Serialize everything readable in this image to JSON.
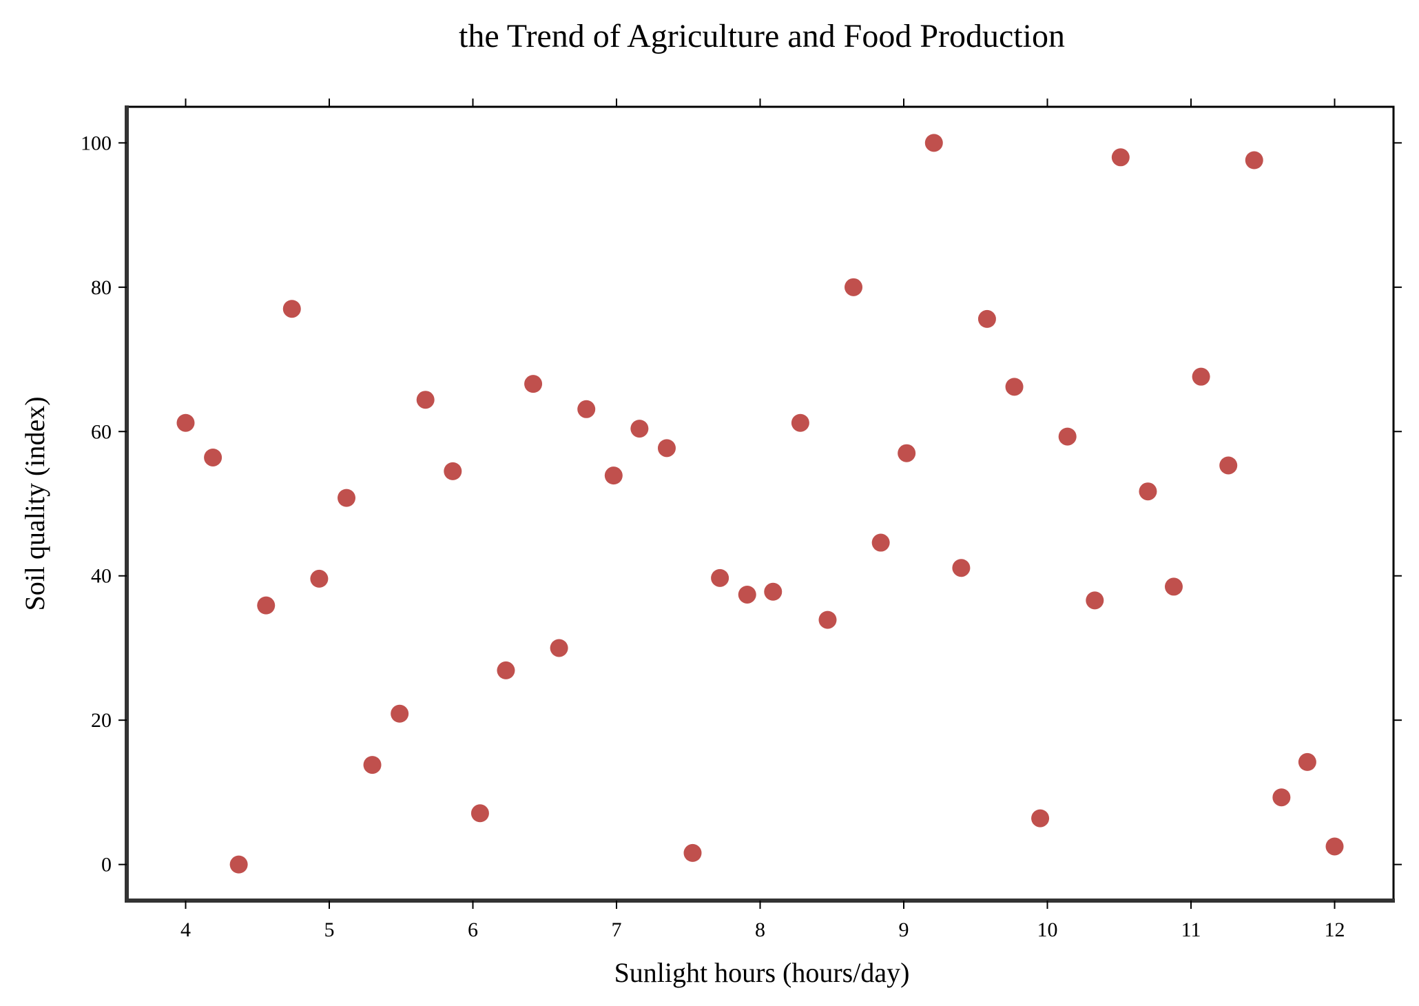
{
  "chart_data": {
    "type": "scatter",
    "title": "the Trend of Agriculture and Food Production",
    "xlabel": "Sunlight hours (hours/day)",
    "ylabel": "Soil quality (index)",
    "xlim": [
      3.59,
      12.41
    ],
    "ylim": [
      -5,
      105
    ],
    "xticks": [
      4,
      5,
      6,
      7,
      8,
      9,
      10,
      11,
      12
    ],
    "yticks": [
      0,
      20,
      40,
      60,
      80,
      100
    ],
    "grid": false,
    "marker_color": "#c0504d",
    "series": [
      {
        "x": [
          4.0,
          4.19,
          4.37,
          4.56,
          4.74,
          4.93,
          5.12,
          5.3,
          5.49,
          5.67,
          5.86,
          6.05,
          6.23,
          6.42,
          6.6,
          6.79,
          6.98,
          7.16,
          7.35,
          7.53,
          7.72,
          7.91,
          8.09,
          8.28,
          8.47,
          8.65,
          8.84,
          9.02,
          9.21,
          9.4,
          9.58,
          9.77,
          9.95,
          10.14,
          10.33,
          10.51,
          10.7,
          10.88,
          11.07,
          11.26,
          11.44,
          11.63,
          11.81,
          12.0
        ],
        "y": [
          61.2,
          56.4,
          0.0,
          35.9,
          77.0,
          39.6,
          50.8,
          13.8,
          20.9,
          64.4,
          54.5,
          7.1,
          26.9,
          66.6,
          30.0,
          63.1,
          53.9,
          60.4,
          57.7,
          1.6,
          39.7,
          37.4,
          37.8,
          61.2,
          33.9,
          80.0,
          44.6,
          57.0,
          100.0,
          41.1,
          75.6,
          66.2,
          6.4,
          59.3,
          36.6,
          98.0,
          51.7,
          38.5,
          67.6,
          55.3,
          97.6,
          9.3,
          14.2,
          2.5
        ]
      }
    ]
  }
}
